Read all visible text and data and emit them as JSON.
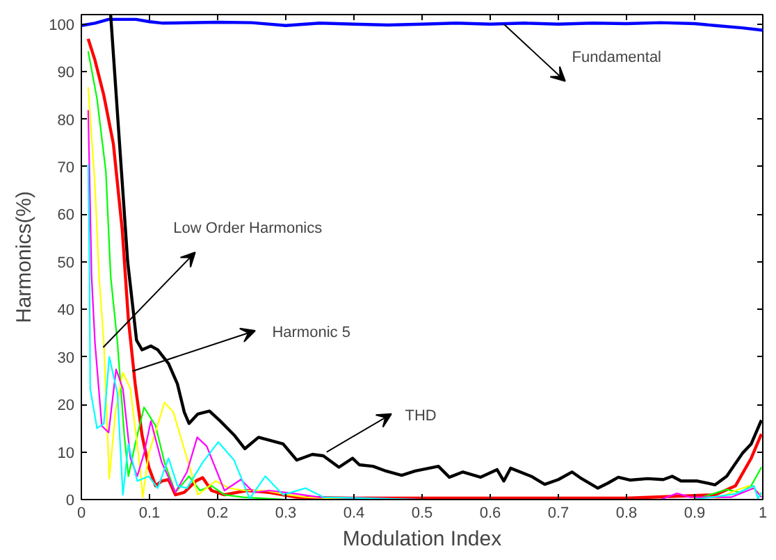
{
  "chart_data": {
    "type": "line",
    "xlabel": "Modulation Index",
    "ylabel": "Harmonics(%)",
    "xlim": [
      0,
      1
    ],
    "ylim": [
      0,
      102
    ],
    "xticks": [
      0,
      0.1,
      0.2,
      0.3,
      0.4,
      0.5,
      0.6,
      0.7,
      0.8,
      0.9,
      1
    ],
    "yticks": [
      0,
      10,
      20,
      30,
      40,
      50,
      60,
      70,
      80,
      90,
      100
    ],
    "grid": false,
    "marker": "none",
    "line_style": "solid",
    "series": [
      {
        "color": "#0000ff",
        "x": [
          0,
          0.02,
          0.04,
          0.08,
          0.1,
          0.12,
          0.2,
          0.25,
          0.3,
          0.35,
          0.4,
          0.45,
          0.5,
          0.55,
          0.6,
          0.65,
          0.7,
          0.75,
          0.8,
          0.85,
          0.9,
          0.93,
          0.97,
          1
        ],
        "values": [
          99.7,
          100.2,
          101,
          101,
          100.5,
          100.2,
          100.4,
          100.3,
          99.7,
          100.2,
          100,
          99.8,
          100,
          100.2,
          100,
          100.2,
          100,
          100.2,
          100.1,
          100.3,
          100.1,
          99.7,
          99.2,
          98.7
        ]
      },
      {
        "color": "#000000",
        "x": [
          0.043,
          0.068,
          0.081,
          0.089,
          0.102,
          0.112,
          0.128,
          0.141,
          0.151,
          0.158,
          0.171,
          0.188,
          0.204,
          0.224,
          0.24,
          0.26,
          0.296,
          0.316,
          0.339,
          0.355,
          0.378,
          0.398,
          0.408,
          0.428,
          0.447,
          0.47,
          0.49,
          0.524,
          0.54,
          0.56,
          0.586,
          0.61,
          0.62,
          0.63,
          0.66,
          0.68,
          0.7,
          0.72,
          0.732,
          0.758,
          0.772,
          0.788,
          0.805,
          0.831,
          0.854,
          0.867,
          0.88,
          0.904,
          0.93,
          0.947,
          0.97,
          0.983,
          0.998
        ],
        "values": [
          102,
          50,
          33.5,
          31.5,
          32.3,
          31.5,
          28.6,
          24.3,
          18.4,
          16,
          18,
          18.6,
          16.5,
          13.6,
          10.7,
          13.1,
          11.7,
          8.3,
          9.5,
          9.2,
          6.8,
          8.7,
          7.3,
          7,
          6,
          5.1,
          6,
          7,
          4.7,
          5.8,
          4.7,
          6.3,
          3.9,
          6.6,
          4.9,
          3.2,
          4.2,
          5.8,
          4.6,
          2.4,
          3.4,
          4.7,
          4.1,
          4.4,
          4.2,
          4.9,
          3.9,
          3.9,
          3.1,
          4.9,
          9.7,
          11.7,
          16.7
        ]
      },
      {
        "color": "#ff0000",
        "x": [
          0.01,
          0.02,
          0.033,
          0.047,
          0.06,
          0.069,
          0.079,
          0.089,
          0.099,
          0.109,
          0.118,
          0.128,
          0.138,
          0.151,
          0.168,
          0.178,
          0.191,
          0.21,
          0.243,
          0.276,
          0.316,
          0.4,
          0.6,
          0.8,
          0.93,
          0.96,
          0.983,
          0.998
        ],
        "values": [
          96.9,
          92.4,
          85,
          74.8,
          56.7,
          37.9,
          24.3,
          13.6,
          6.8,
          2.9,
          3.9,
          4.2,
          1,
          1.5,
          3.9,
          4.6,
          1.9,
          1,
          1.9,
          1.5,
          0.5,
          0.3,
          0.3,
          0.3,
          1,
          2.9,
          8.7,
          13.8
        ]
      },
      {
        "color": "#00ff00",
        "x": [
          0.01,
          0.023,
          0.036,
          0.043,
          0.053,
          0.063,
          0.069,
          0.079,
          0.092,
          0.109,
          0.122,
          0.138,
          0.158,
          0.174,
          0.191,
          0.21,
          0.237,
          0.3,
          0.6,
          0.9,
          0.947,
          0.967,
          0.983,
          0.998
        ],
        "values": [
          94.3,
          84.3,
          69,
          47,
          33,
          13.6,
          4.9,
          11.7,
          19.4,
          15.5,
          7.8,
          1.5,
          4.9,
          1.9,
          2.9,
          1,
          0.5,
          0,
          0,
          0,
          2.1,
          1.5,
          2.9,
          6.8
        ]
      },
      {
        "color": "#ffff00",
        "x": [
          0.01,
          0.02,
          0.026,
          0.033,
          0.041,
          0.05,
          0.061,
          0.072,
          0.086,
          0.09,
          0.099,
          0.122,
          0.135,
          0.155,
          0.171,
          0.197,
          0.217,
          0.24,
          0.27,
          0.303,
          0.33,
          0.4,
          0.7,
          0.93,
          0.96,
          0.98,
          0.998
        ],
        "values": [
          86.7,
          66,
          47,
          33,
          4.4,
          18.4,
          26.7,
          23.3,
          6.8,
          0.5,
          9.7,
          20.4,
          18.4,
          8.7,
          1,
          3.9,
          2.4,
          1.9,
          1.9,
          1,
          0.5,
          0,
          0,
          0,
          1.9,
          2.9,
          1
        ]
      },
      {
        "color": "#ff00ff",
        "x": [
          0.01,
          0.015,
          0.02,
          0.03,
          0.04,
          0.051,
          0.061,
          0.072,
          0.082,
          0.092,
          0.102,
          0.118,
          0.138,
          0.155,
          0.17,
          0.184,
          0.21,
          0.234,
          0.253,
          0.276,
          0.316,
          0.349,
          0.5,
          0.85,
          0.874,
          0.894,
          0.954,
          0.987,
          0.998
        ],
        "values": [
          81.9,
          47,
          33,
          15.5,
          14.1,
          27.4,
          23.3,
          8.7,
          4.9,
          9.7,
          16.5,
          7.8,
          1.5,
          5.8,
          13.1,
          11.2,
          1.9,
          4.2,
          1.5,
          1.9,
          1.2,
          0.5,
          0,
          0,
          1.3,
          0.5,
          0.5,
          2.4,
          0.5
        ]
      },
      {
        "color": "#00ffff",
        "x": [
          0.01,
          0.012,
          0.013,
          0.023,
          0.033,
          0.041,
          0.053,
          0.061,
          0.069,
          0.082,
          0.099,
          0.112,
          0.128,
          0.141,
          0.155,
          0.178,
          0.201,
          0.224,
          0.247,
          0.27,
          0.296,
          0.329,
          0.355,
          0.5,
          0.9,
          0.96,
          0.987,
          0.993,
          0.998
        ],
        "values": [
          70.5,
          47,
          23.3,
          15,
          16,
          30,
          22.3,
          1,
          11.7,
          3.9,
          4.9,
          2.4,
          8.7,
          2.9,
          2.4,
          7.8,
          12.1,
          8.3,
          0.2,
          4.9,
          1,
          2.4,
          0.5,
          0,
          0,
          1.2,
          2.9,
          0.2,
          1.5
        ]
      }
    ],
    "annotations": [
      {
        "text": "Fundamental",
        "x": 0.62,
        "y": 100
      },
      "Low Order Harmonics",
      {
        "text": "Harmonic 5",
        "x": 0.075,
        "y": 27
      },
      {
        "text": "THD",
        "x": 0.36,
        "y": 10
      }
    ]
  }
}
